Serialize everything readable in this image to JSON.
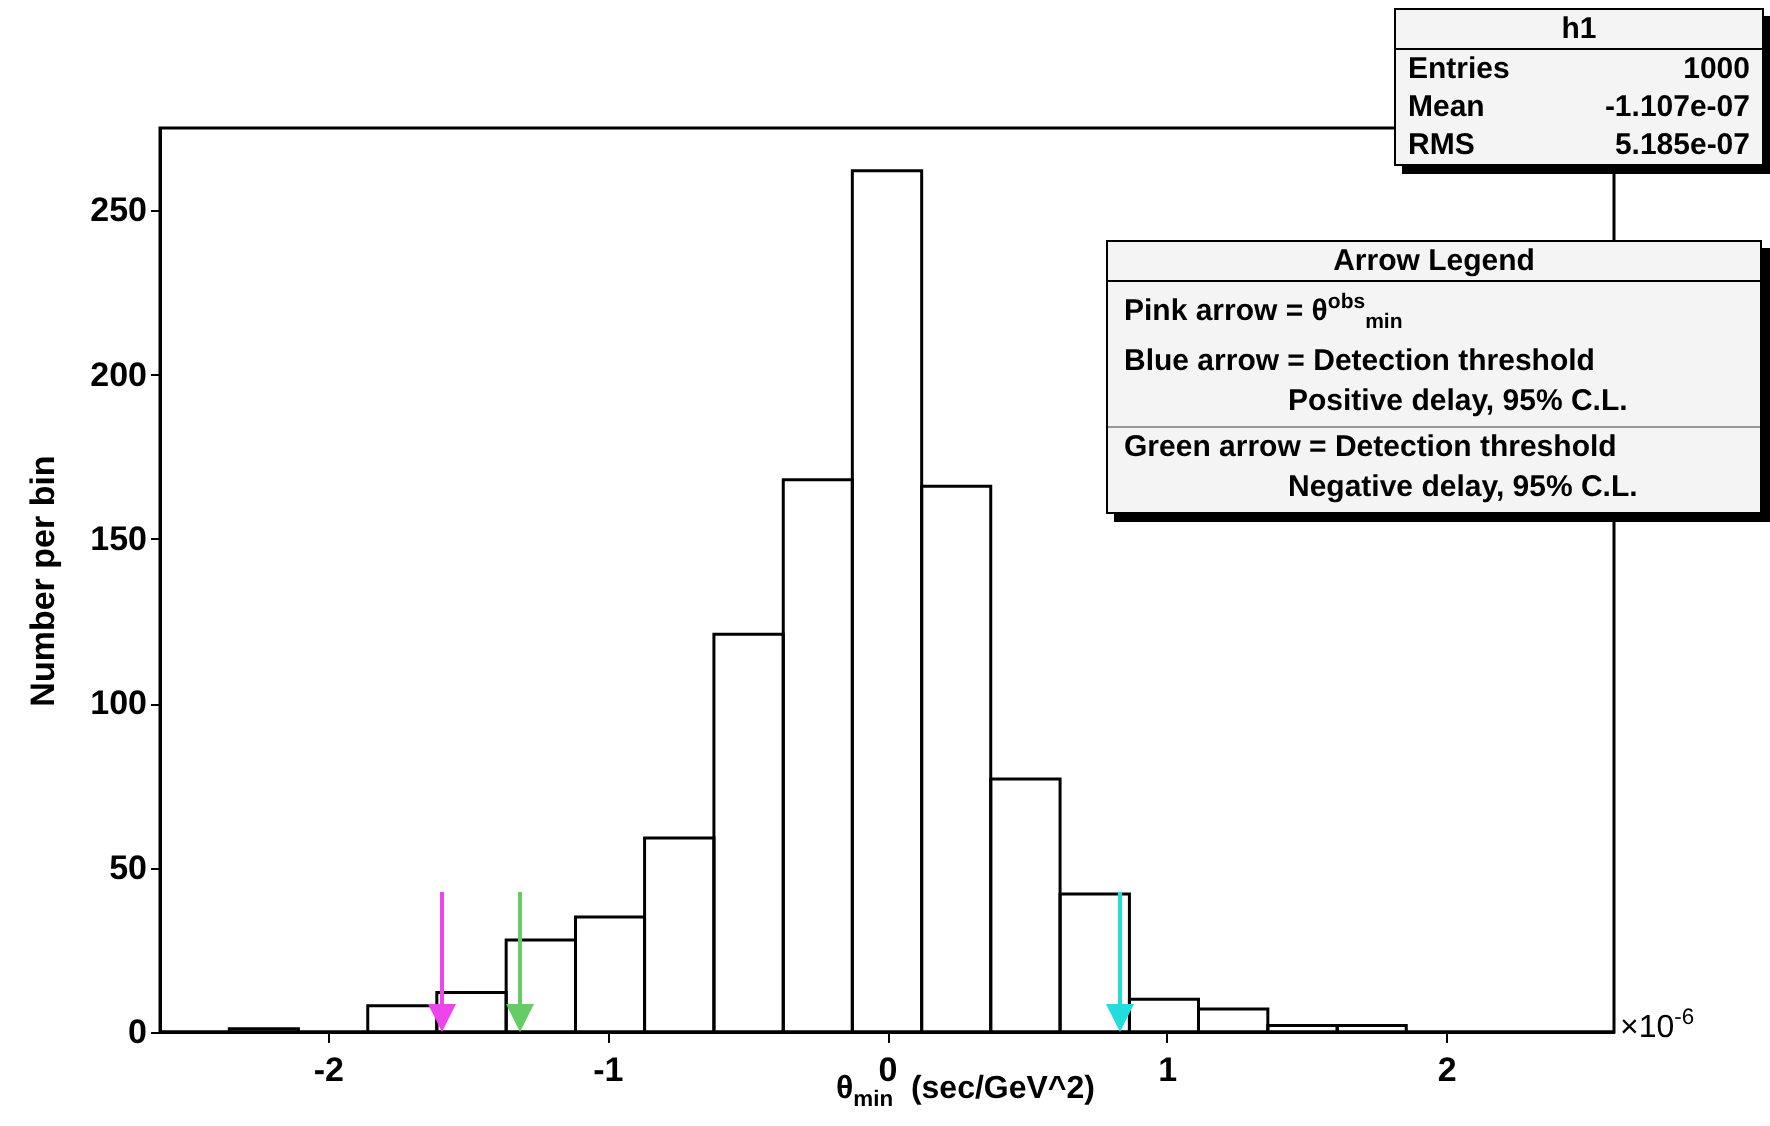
{
  "chart_data": {
    "type": "histogram",
    "xlabel": "θ$_{min}$  (sec/GeV^2)",
    "ylabel": "Number per bin",
    "bins": [
      -2.6,
      -2.352,
      -2.105,
      -1.857,
      -1.61,
      -1.362,
      -1.114,
      -0.867,
      -0.619,
      -0.371,
      -0.124,
      0.124,
      0.371,
      0.619,
      0.867,
      1.114,
      1.362,
      1.61,
      1.857,
      2.105,
      2.352,
      2.6
    ],
    "values": [
      0,
      1,
      0,
      8,
      12,
      28,
      35,
      59,
      121,
      168,
      262,
      166,
      77,
      42,
      10,
      7,
      2,
      2,
      0,
      0,
      0
    ],
    "color": "#000000",
    "xlim": [
      -2.6,
      2.6
    ],
    "xticks": [
      -2,
      -1,
      0,
      1,
      2
    ],
    "ylim": [
      0,
      275
    ],
    "yticks": [
      0,
      50,
      100,
      150,
      200,
      250
    ],
    "ref_lines": [
      {
        "axis": "x",
        "value": -1.59,
        "color": "#ee44ee"
      },
      {
        "axis": "x",
        "value": -1.31,
        "color": "#66cc66"
      },
      {
        "axis": "x",
        "value": 0.83,
        "color": "#22dddd"
      }
    ],
    "annotations": [
      "h1",
      "Entries",
      "1000",
      "Mean",
      "-1.107e-07",
      "RMS",
      "5.185e-07",
      "Arrow Legend",
      "Pink arrow = θ$^{obs}$$_{min}$",
      "Blue arrow = Detection threshold",
      "Positive delay, 95% C.L.",
      "Green arrow = Detection threshold",
      "Negative delay, 95% C.L.",
      "×10$^{-6}$"
    ]
  }
}
